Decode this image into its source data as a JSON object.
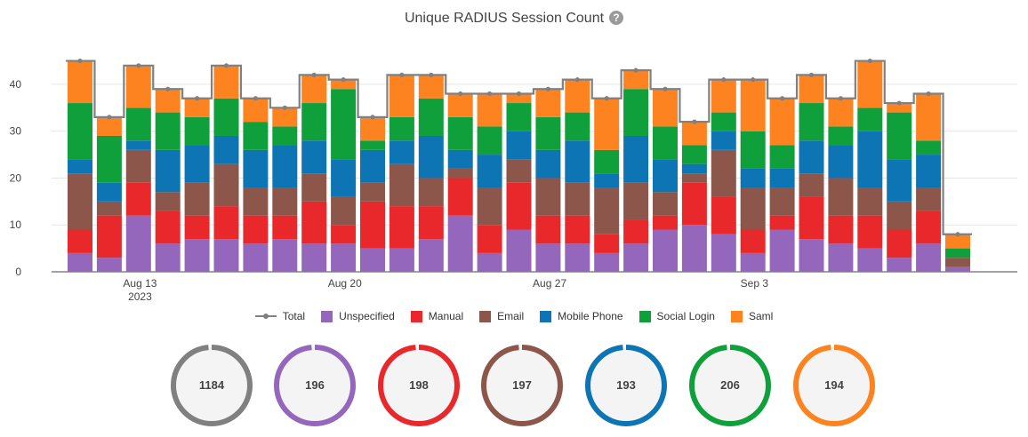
{
  "chart_data": {
    "type": "bar",
    "stacked": true,
    "title": "Unique RADIUS Session Count",
    "help_icon": "question-circle-icon",
    "x": [
      "2023-08-11",
      "2023-08-12",
      "2023-08-13",
      "2023-08-14",
      "2023-08-15",
      "2023-08-16",
      "2023-08-17",
      "2023-08-18",
      "2023-08-19",
      "2023-08-20",
      "2023-08-21",
      "2023-08-22",
      "2023-08-23",
      "2023-08-24",
      "2023-08-25",
      "2023-08-26",
      "2023-08-27",
      "2023-08-28",
      "2023-08-29",
      "2023-08-30",
      "2023-08-31",
      "2023-09-01",
      "2023-09-02",
      "2023-09-03",
      "2023-09-04",
      "2023-09-05",
      "2023-09-06",
      "2023-09-07",
      "2023-09-08",
      "2023-09-09",
      "2023-09-10",
      "2023-09-11",
      "2023-09-12",
      "2023-09-13",
      "2023-09-14",
      "2023-09-15"
    ],
    "x_tick_labels": [
      {
        "x": "2023-08-13",
        "lines": [
          "Aug 13",
          "2023"
        ]
      },
      {
        "x": "2023-08-20",
        "lines": [
          "Aug 20"
        ]
      },
      {
        "x": "2023-08-27",
        "lines": [
          "Aug 27"
        ]
      },
      {
        "x": "2023-09-03",
        "lines": [
          "Sep 3"
        ]
      }
    ],
    "yticks": [
      0,
      10,
      20,
      30,
      40
    ],
    "ylim": [
      0,
      47
    ],
    "grid": "horizontal",
    "legend_position": "bottom",
    "series": [
      {
        "name": "Unspecified",
        "color": "#9467bd",
        "values": [
          4,
          3,
          12,
          6,
          7,
          7,
          6,
          7,
          6,
          6,
          5,
          5,
          7,
          12,
          4,
          9,
          6,
          6,
          4,
          6,
          9,
          10,
          8,
          4,
          9,
          7,
          6,
          5,
          3,
          6,
          1,
          0,
          0,
          0,
          0,
          0
        ]
      },
      {
        "name": "Manual",
        "color": "#e8282b",
        "values": [
          5,
          9,
          7,
          7,
          5,
          7,
          6,
          5,
          9,
          4,
          10,
          9,
          7,
          8,
          6,
          10,
          6,
          6,
          4,
          5,
          3,
          9,
          8,
          5,
          3,
          9,
          6,
          7,
          6,
          7,
          0,
          0,
          0,
          0,
          0,
          0
        ]
      },
      {
        "name": "Email",
        "color": "#8c564b",
        "values": [
          12,
          3,
          7,
          4,
          7,
          9,
          6,
          6,
          6,
          6,
          4,
          9,
          6,
          2,
          8,
          5,
          8,
          7,
          10,
          8,
          5,
          2,
          10,
          9,
          6,
          5,
          8,
          6,
          6,
          5,
          2,
          0,
          0,
          0,
          0,
          0
        ]
      },
      {
        "name": "Mobile Phone",
        "color": "#0d75b3",
        "values": [
          3,
          4,
          2,
          9,
          8,
          6,
          8,
          9,
          7,
          8,
          7,
          5,
          9,
          4,
          7,
          6,
          6,
          9,
          3,
          10,
          7,
          2,
          4,
          4,
          4,
          7,
          7,
          12,
          9,
          7,
          0,
          0,
          0,
          0,
          0,
          0
        ]
      },
      {
        "name": "Social Login",
        "color": "#0fa03b",
        "values": [
          12,
          10,
          7,
          8,
          6,
          8,
          6,
          4,
          8,
          15,
          2,
          5,
          8,
          7,
          6,
          6,
          7,
          6,
          5,
          10,
          7,
          4,
          4,
          8,
          5,
          8,
          4,
          5,
          10,
          3,
          2,
          0,
          0,
          0,
          0,
          0
        ]
      },
      {
        "name": "Saml",
        "color": "#fd8321",
        "values": [
          9,
          4,
          9,
          5,
          4,
          7,
          5,
          4,
          6,
          2,
          5,
          9,
          5,
          5,
          7,
          2,
          6,
          7,
          11,
          4,
          8,
          5,
          7,
          11,
          10,
          6,
          6,
          10,
          2,
          10,
          3,
          0,
          0,
          0,
          0,
          0
        ]
      }
    ],
    "total": {
      "name": "Total",
      "color": "#808080",
      "values": [
        45,
        33,
        44,
        39,
        37,
        44,
        37,
        35,
        42,
        41,
        33,
        42,
        42,
        38,
        38,
        38,
        39,
        41,
        37,
        43,
        39,
        32,
        41,
        41,
        37,
        42,
        37,
        45,
        36,
        38,
        8,
        0,
        0,
        0,
        0,
        0
      ]
    }
  },
  "summary": [
    {
      "label": "Total",
      "value": "1184",
      "color": "#808080"
    },
    {
      "label": "Unspecified",
      "value": "196",
      "color": "#9467bd"
    },
    {
      "label": "Manual",
      "value": "198",
      "color": "#e8282b"
    },
    {
      "label": "Email",
      "value": "197",
      "color": "#8c564b"
    },
    {
      "label": "Mobile Phone",
      "value": "193",
      "color": "#0d75b3"
    },
    {
      "label": "Social Login",
      "value": "206",
      "color": "#0fa03b"
    },
    {
      "label": "Saml",
      "value": "194",
      "color": "#fd8321"
    }
  ]
}
